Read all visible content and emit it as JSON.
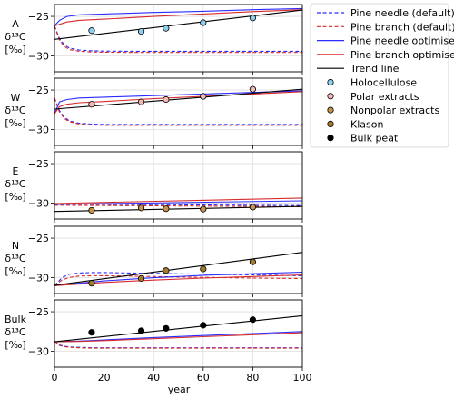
{
  "colors": {
    "pine_needle": "#2b2bff",
    "pine_branch": "#d62b2b",
    "trend": "#000000",
    "holocellulose": "#8ecff0",
    "polar": "#f3b9b3",
    "nonpolar": "#c7934a",
    "klason": "#a57a2a",
    "bulk": "#000000",
    "grid": "#dddddd"
  },
  "legend": {
    "items": [
      {
        "label": "Pine needle (default)",
        "kind": "line",
        "color": "#2b2bff",
        "dash": true
      },
      {
        "label": "Pine branch (default)",
        "kind": "line",
        "color": "#d62b2b",
        "dash": true
      },
      {
        "label": "Pine needle optimised)",
        "kind": "line",
        "color": "#2b2bff",
        "dash": false
      },
      {
        "label": "Pine branch optimised",
        "kind": "line",
        "color": "#d62b2b",
        "dash": false
      },
      {
        "label": "Trend line",
        "kind": "line",
        "color": "#000000",
        "dash": false
      },
      {
        "label": "Holocellulose",
        "kind": "marker",
        "color": "#8ecff0"
      },
      {
        "label": "Polar extracts",
        "kind": "marker",
        "color": "#f3b9b3"
      },
      {
        "label": "Nonpolar extracts",
        "kind": "marker",
        "color": "#c7934a"
      },
      {
        "label": "Klason",
        "kind": "marker",
        "color": "#a57a2a"
      },
      {
        "label": "Bulk peat",
        "kind": "marker",
        "color": "#000000"
      }
    ]
  },
  "chart_data": {
    "type": "line",
    "xlabel": "year",
    "xlim": [
      0,
      100
    ],
    "x_ticks": [
      0,
      20,
      40,
      60,
      80,
      100
    ],
    "ylim": [
      -32,
      -23.5
    ],
    "y_ticks": [
      -25,
      -30
    ],
    "ylabel_symbol": "δ¹³C",
    "ylabel_unit": "[‰]",
    "grid": true,
    "legend_position": "outside-right",
    "panels": [
      {
        "name": "A",
        "points": {
          "x": [
            15,
            35,
            45,
            60,
            80
          ],
          "y": [
            -26.8,
            -26.9,
            -26.5,
            -25.8,
            -25.2
          ]
        },
        "marker_color": "#8ecff0",
        "series": [
          {
            "key": "needle_def",
            "x": [
              0,
              2,
              4,
              6,
              10,
              15,
              20,
              30,
              40,
              60,
              80,
              100
            ],
            "y": [
              -26.2,
              -27.8,
              -28.6,
              -29.0,
              -29.25,
              -29.35,
              -29.38,
              -29.4,
              -29.4,
              -29.4,
              -29.4,
              -29.4
            ]
          },
          {
            "key": "branch_def",
            "x": [
              0,
              2,
              4,
              6,
              10,
              15,
              20,
              30,
              40,
              60,
              80,
              100
            ],
            "y": [
              -26.2,
              -28.0,
              -28.8,
              -29.2,
              -29.4,
              -29.5,
              -29.52,
              -29.55,
              -29.55,
              -29.55,
              -29.55,
              -29.55
            ]
          },
          {
            "key": "needle_opt",
            "x": [
              0,
              2,
              5,
              10,
              20,
              40,
              60,
              80,
              100
            ],
            "y": [
              -26.2,
              -25.5,
              -25.0,
              -24.8,
              -24.7,
              -24.5,
              -24.35,
              -24.15,
              -24.0
            ]
          },
          {
            "key": "branch_opt",
            "x": [
              0,
              2,
              5,
              10,
              20,
              40,
              60,
              80,
              100
            ],
            "y": [
              -26.2,
              -26.0,
              -25.7,
              -25.5,
              -25.35,
              -25.0,
              -24.7,
              -24.4,
              -24.15
            ]
          },
          {
            "key": "trend",
            "x": [
              0,
              100
            ],
            "y": [
              -27.9,
              -24.2
            ]
          }
        ]
      },
      {
        "name": "W",
        "points": {
          "x": [
            15,
            35,
            45,
            60,
            80
          ],
          "y": [
            -26.8,
            -26.5,
            -26.2,
            -25.8,
            -24.9
          ]
        },
        "marker_color": "#f3b9b3",
        "series": [
          {
            "key": "needle_def",
            "x": [
              0,
              2,
              4,
              6,
              10,
              15,
              20,
              30,
              40,
              60,
              80,
              100
            ],
            "y": [
              -26.0,
              -27.6,
              -28.4,
              -28.9,
              -29.2,
              -29.3,
              -29.35,
              -29.35,
              -29.35,
              -29.35,
              -29.35,
              -29.35
            ]
          },
          {
            "key": "branch_def",
            "x": [
              0,
              2,
              4,
              6,
              10,
              15,
              20,
              30,
              40,
              60,
              80,
              100
            ],
            "y": [
              -26.0,
              -27.8,
              -28.6,
              -29.0,
              -29.3,
              -29.4,
              -29.45,
              -29.45,
              -29.45,
              -29.45,
              -29.45,
              -29.45
            ]
          },
          {
            "key": "needle_opt",
            "x": [
              0,
              2,
              5,
              10,
              20,
              40,
              60,
              80,
              100
            ],
            "y": [
              -28.0,
              -26.5,
              -26.2,
              -26.0,
              -25.9,
              -25.7,
              -25.5,
              -25.3,
              -25.1
            ]
          },
          {
            "key": "branch_opt",
            "x": [
              0,
              2,
              5,
              10,
              20,
              40,
              60,
              80,
              100
            ],
            "y": [
              -28.0,
              -27.1,
              -26.8,
              -26.6,
              -26.45,
              -26.1,
              -25.8,
              -25.5,
              -25.2
            ]
          },
          {
            "key": "trend",
            "x": [
              0,
              100
            ],
            "y": [
              -27.4,
              -24.9
            ]
          }
        ]
      },
      {
        "name": "E",
        "points": {
          "x": [
            15,
            35,
            45,
            60,
            80
          ],
          "y": [
            -30.9,
            -30.6,
            -30.7,
            -30.75,
            -30.5
          ]
        },
        "marker_color": "#c7934a",
        "series": [
          {
            "key": "needle_def",
            "x": [
              0,
              100
            ],
            "y": [
              -30.1,
              -30.3
            ]
          },
          {
            "key": "branch_def",
            "x": [
              0,
              100
            ],
            "y": [
              -30.25,
              -30.45
            ]
          },
          {
            "key": "needle_opt",
            "x": [
              0,
              100
            ],
            "y": [
              -30.15,
              -29.7
            ]
          },
          {
            "key": "branch_opt",
            "x": [
              0,
              100
            ],
            "y": [
              -30.05,
              -29.35
            ]
          },
          {
            "key": "trend",
            "x": [
              0,
              100
            ],
            "y": [
              -31.05,
              -30.4
            ]
          }
        ]
      },
      {
        "name": "N",
        "points": {
          "x": [
            15,
            35,
            45,
            60,
            80
          ],
          "y": [
            -30.7,
            -30.1,
            -29.1,
            -28.9,
            -28.0
          ]
        },
        "marker_color": "#a57a2a",
        "series": [
          {
            "key": "needle_def",
            "x": [
              0,
              3,
              6,
              10,
              15,
              20,
              30,
              40,
              60,
              80,
              100
            ],
            "y": [
              -31.0,
              -30.0,
              -29.55,
              -29.4,
              -29.35,
              -29.35,
              -29.4,
              -29.45,
              -29.55,
              -29.65,
              -29.75
            ]
          },
          {
            "key": "branch_def",
            "x": [
              0,
              3,
              6,
              10,
              15,
              20,
              30,
              40,
              60,
              80,
              100
            ],
            "y": [
              -31.0,
              -30.3,
              -29.95,
              -29.8,
              -29.75,
              -29.75,
              -29.8,
              -29.85,
              -29.95,
              -30.05,
              -30.1
            ]
          },
          {
            "key": "needle_opt",
            "x": [
              0,
              10,
              20,
              40,
              60,
              80,
              100
            ],
            "y": [
              -31.0,
              -30.7,
              -30.4,
              -30.0,
              -29.7,
              -29.5,
              -29.3
            ]
          },
          {
            "key": "branch_opt",
            "x": [
              0,
              10,
              20,
              40,
              60,
              80,
              100
            ],
            "y": [
              -31.0,
              -30.8,
              -30.6,
              -30.3,
              -30.05,
              -29.85,
              -29.65
            ]
          },
          {
            "key": "trend",
            "x": [
              0,
              100
            ],
            "y": [
              -30.95,
              -26.8
            ]
          }
        ]
      },
      {
        "name": "Bulk",
        "points": {
          "x": [
            15,
            35,
            45,
            60,
            80
          ],
          "y": [
            -27.6,
            -27.4,
            -27.1,
            -26.7,
            -26.0
          ]
        },
        "marker_color": "#000000",
        "series": [
          {
            "key": "needle_def",
            "x": [
              0,
              2,
              4,
              6,
              10,
              15,
              20,
              30,
              40,
              60,
              80,
              100
            ],
            "y": [
              -28.7,
              -29.2,
              -29.35,
              -29.45,
              -29.5,
              -29.55,
              -29.55,
              -29.55,
              -29.55,
              -29.55,
              -29.55,
              -29.55
            ]
          },
          {
            "key": "branch_def",
            "x": [
              0,
              2,
              4,
              6,
              10,
              15,
              20,
              30,
              40,
              60,
              80,
              100
            ],
            "y": [
              -28.7,
              -29.25,
              -29.4,
              -29.5,
              -29.55,
              -29.6,
              -29.6,
              -29.6,
              -29.6,
              -29.6,
              -29.6,
              -29.6
            ]
          },
          {
            "key": "needle_opt",
            "x": [
              0,
              10,
              20,
              40,
              60,
              80,
              100
            ],
            "y": [
              -28.8,
              -28.7,
              -28.55,
              -28.25,
              -28.0,
              -27.75,
              -27.5
            ]
          },
          {
            "key": "branch_opt",
            "x": [
              0,
              10,
              20,
              40,
              60,
              80,
              100
            ],
            "y": [
              -28.8,
              -28.75,
              -28.65,
              -28.4,
              -28.15,
              -27.9,
              -27.65
            ]
          },
          {
            "key": "trend",
            "x": [
              0,
              100
            ],
            "y": [
              -28.8,
              -25.5
            ]
          }
        ]
      }
    ]
  }
}
